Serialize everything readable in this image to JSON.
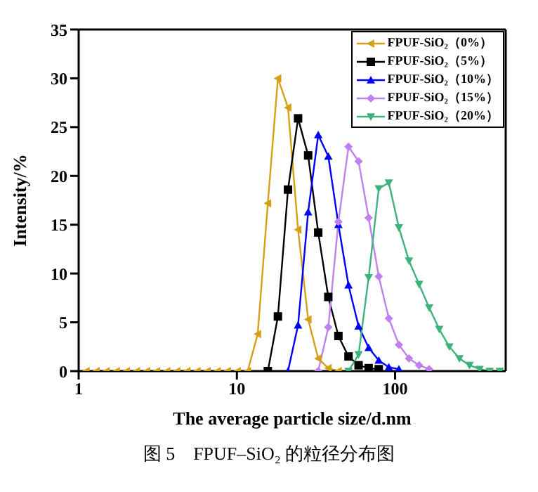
{
  "chart_data": {
    "type": "line",
    "xlabel": "The average particle size/d.nm",
    "ylabel": "Intensity/%",
    "log": "x",
    "xlim": [
      1,
      500
    ],
    "xticks": [
      1,
      10,
      100
    ],
    "ylim": [
      0,
      35
    ],
    "yticks": [
      0,
      5,
      10,
      15,
      20,
      25,
      30,
      35
    ],
    "grid": false,
    "legend": "top right",
    "line_style": "solid",
    "annotations": [
      "图 5　FPUF–SiO₂ 的粒径分布图"
    ],
    "x": [
      1.117,
      1.294,
      1.499,
      1.736,
      2.01,
      2.328,
      2.696,
      3.122,
      3.615,
      4.187,
      4.849,
      5.615,
      6.503,
      7.531,
      8.721,
      10.1,
      11.7,
      13.54,
      15.69,
      18.17,
      21.04,
      24.36,
      28.21,
      32.67,
      37.84,
      43.82,
      50.75,
      58.77,
      68.06,
      78.82,
      91.28,
      105.7,
      122.4,
      141.8,
      164.2,
      190.1,
      220.2,
      255.0,
      295.3,
      342.0,
      396.1,
      458.7
    ],
    "series": [
      {
        "name": "FPUF-SiO₂（0%）",
        "color": "#d4a017",
        "marker": "triangle-left",
        "values": [
          0,
          0,
          0,
          0,
          0,
          0,
          0,
          0,
          0,
          0,
          0,
          0,
          0,
          0,
          0,
          0,
          0,
          3.8,
          17.2,
          30,
          27,
          14.5,
          5.3,
          1.3,
          0.3,
          0,
          null,
          null,
          null,
          null,
          null,
          null,
          null,
          null,
          null,
          null,
          null,
          null,
          null,
          null,
          null,
          null
        ]
      },
      {
        "name": "FPUF-SiO₂（5%）",
        "color": "#000000",
        "marker": "square",
        "values": [
          null,
          null,
          null,
          null,
          null,
          null,
          null,
          null,
          null,
          null,
          null,
          null,
          null,
          null,
          null,
          null,
          null,
          null,
          0,
          5.6,
          18.6,
          25.9,
          22.1,
          14.2,
          7.6,
          3.6,
          1.5,
          0.6,
          0.3,
          0.2,
          null,
          null,
          null,
          null,
          null,
          null,
          null,
          null,
          null,
          null,
          null,
          null
        ]
      },
      {
        "name": "FPUF-SiO₂（10%）",
        "color": "#0000ff",
        "marker": "triangle",
        "values": [
          null,
          null,
          null,
          null,
          null,
          null,
          null,
          null,
          null,
          null,
          null,
          null,
          null,
          null,
          null,
          null,
          null,
          null,
          null,
          null,
          0,
          4.7,
          16.3,
          24.2,
          22,
          15,
          8.8,
          4.6,
          2.4,
          1.1,
          0.4,
          0.2,
          null,
          null,
          null,
          null,
          null,
          null,
          null,
          null,
          null,
          null
        ]
      },
      {
        "name": "FPUF-SiO₂（15%）",
        "color": "#c080f0",
        "marker": "diamond",
        "values": [
          null,
          null,
          null,
          null,
          null,
          null,
          null,
          null,
          null,
          null,
          null,
          null,
          null,
          null,
          null,
          null,
          null,
          null,
          null,
          null,
          null,
          null,
          null,
          0,
          4.5,
          15.3,
          23,
          21.5,
          15.7,
          9.7,
          5.4,
          2.7,
          1.3,
          0.6,
          0.2,
          null,
          null,
          null,
          null,
          null,
          null,
          null
        ]
      },
      {
        "name": "FPUF-SiO₂（20%）",
        "color": "#3cb37a",
        "marker": "triangle-down",
        "values": [
          null,
          null,
          null,
          null,
          null,
          null,
          null,
          null,
          null,
          null,
          null,
          null,
          null,
          null,
          null,
          null,
          null,
          null,
          null,
          null,
          null,
          null,
          null,
          null,
          null,
          null,
          0,
          1.7,
          9.6,
          18.7,
          19.3,
          14.7,
          11.3,
          8.9,
          6.5,
          4.3,
          2.5,
          1.3,
          0.6,
          0.2,
          0,
          0
        ]
      }
    ]
  }
}
